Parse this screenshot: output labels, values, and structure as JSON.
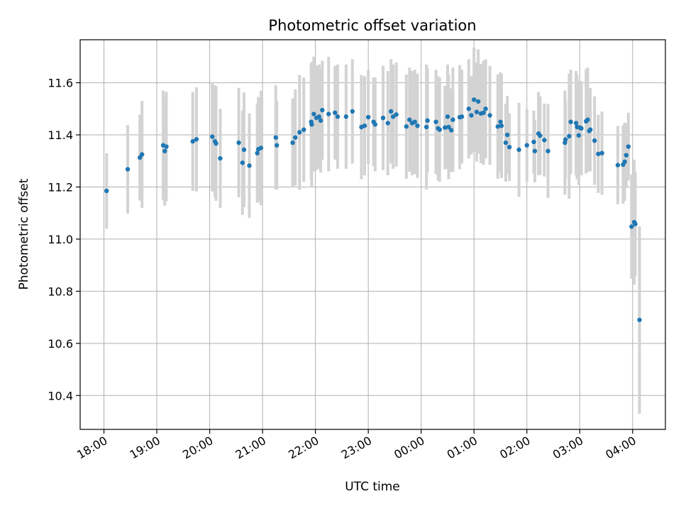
{
  "chart_data": {
    "type": "scatter",
    "title": "Photometric offset variation",
    "xlabel": "UTC time",
    "ylabel": "Photometric offset",
    "x_tick_labels": [
      "18:00",
      "19:00",
      "20:00",
      "21:00",
      "22:00",
      "23:00",
      "00:00",
      "01:00",
      "02:00",
      "03:00",
      "04:00"
    ],
    "y_ticks": [
      "10.4",
      "10.6",
      "10.8",
      "11.0",
      "11.2",
      "11.4",
      "11.6"
    ],
    "xlim_hours": [
      17.55,
      28.62
    ],
    "ylim": [
      10.27,
      11.765
    ],
    "grid": true,
    "colors": {
      "point": "#1f77b4",
      "error_bar": "#d3d3d3",
      "grid": "#b0b0b0"
    },
    "series": [
      {
        "x_hours": [
          18.05,
          18.45,
          18.68,
          18.72,
          19.12,
          19.15,
          19.18,
          19.68,
          19.75,
          20.05,
          20.1,
          20.12,
          20.2,
          20.55,
          20.62,
          20.65,
          20.75,
          20.9,
          20.92,
          20.97,
          21.25,
          21.27,
          21.57,
          21.62,
          21.7,
          21.78,
          21.92,
          21.93,
          21.97,
          22.02,
          22.07,
          22.1,
          22.13,
          22.25,
          22.37,
          22.42,
          22.58,
          22.7,
          22.87,
          22.93,
          23.0,
          23.1,
          23.13,
          23.28,
          23.37,
          23.43,
          23.47,
          23.53,
          23.72,
          23.78,
          23.83,
          23.88,
          23.93,
          24.1,
          24.12,
          24.28,
          24.32,
          24.35,
          24.45,
          24.5,
          24.52,
          24.57,
          24.6,
          24.73,
          24.77,
          24.9,
          24.95,
          25.0,
          25.05,
          25.08,
          25.13,
          25.18,
          25.22,
          25.3,
          25.45,
          25.5,
          25.52,
          25.6,
          25.63,
          25.67,
          25.85,
          26.0,
          26.13,
          26.15,
          26.22,
          26.25,
          26.33,
          26.4,
          26.72,
          26.73,
          26.8,
          26.83,
          26.93,
          26.95,
          26.98,
          27.0,
          27.03,
          27.12,
          27.15,
          27.18,
          27.2,
          27.28,
          27.35,
          27.42,
          27.72,
          27.82,
          27.85,
          27.88,
          27.92,
          27.98,
          28.03,
          28.05,
          28.13
        ],
        "y": [
          11.185,
          11.268,
          11.313,
          11.325,
          11.36,
          11.338,
          11.355,
          11.375,
          11.383,
          11.393,
          11.375,
          11.367,
          11.31,
          11.37,
          11.293,
          11.343,
          11.282,
          11.33,
          11.345,
          11.35,
          11.39,
          11.36,
          11.37,
          11.39,
          11.41,
          11.42,
          11.45,
          11.44,
          11.48,
          11.465,
          11.47,
          11.455,
          11.495,
          11.48,
          11.485,
          11.47,
          11.47,
          11.49,
          11.43,
          11.435,
          11.468,
          11.45,
          11.44,
          11.465,
          11.445,
          11.49,
          11.47,
          11.478,
          11.432,
          11.458,
          11.445,
          11.45,
          11.435,
          11.43,
          11.455,
          11.45,
          11.425,
          11.42,
          11.428,
          11.47,
          11.43,
          11.418,
          11.458,
          11.468,
          11.47,
          11.5,
          11.475,
          11.535,
          11.488,
          11.528,
          11.482,
          11.485,
          11.5,
          11.475,
          11.432,
          11.45,
          11.435,
          11.37,
          11.4,
          11.353,
          11.343,
          11.36,
          11.373,
          11.338,
          11.405,
          11.397,
          11.38,
          11.338,
          11.37,
          11.382,
          11.395,
          11.45,
          11.445,
          11.43,
          11.398,
          11.428,
          11.425,
          11.452,
          11.458,
          11.415,
          11.42,
          11.378,
          11.327,
          11.33,
          11.284,
          11.286,
          11.297,
          11.322,
          11.355,
          11.048,
          11.065,
          11.058,
          10.69
        ],
        "err": [
          0.145,
          0.17,
          0.165,
          0.205,
          0.21,
          0.21,
          0.21,
          0.19,
          0.2,
          0.21,
          0.215,
          0.22,
          0.19,
          0.21,
          0.2,
          0.22,
          0.2,
          0.19,
          0.2,
          0.22,
          0.2,
          0.17,
          0.17,
          0.185,
          0.22,
          0.2,
          0.22,
          0.24,
          0.22,
          0.2,
          0.2,
          0.2,
          0.19,
          0.22,
          0.18,
          0.2,
          0.2,
          0.2,
          0.2,
          0.19,
          0.18,
          0.17,
          0.18,
          0.2,
          0.2,
          0.2,
          0.2,
          0.2,
          0.2,
          0.2,
          0.2,
          0.2,
          0.2,
          0.24,
          0.2,
          0.2,
          0.2,
          0.2,
          0.16,
          0.2,
          0.2,
          0.16,
          0.2,
          0.2,
          0.18,
          0.19,
          0.15,
          0.2,
          0.19,
          0.2,
          0.19,
          0.2,
          0.19,
          0.19,
          0.2,
          0.19,
          0.2,
          0.15,
          0.15,
          0.13,
          0.18,
          0.14,
          0.12,
          0.12,
          0.16,
          0.15,
          0.14,
          0.18,
          0.2,
          0.15,
          0.24,
          0.2,
          0.2,
          0.2,
          0.19,
          0.18,
          0.18,
          0.2,
          0.2,
          0.15,
          0.16,
          0.17,
          0.15,
          0.16,
          0.15,
          0.15,
          0.15,
          0.12,
          0.13,
          0.2,
          0.24,
          0.2,
          0.36
        ]
      }
    ]
  }
}
